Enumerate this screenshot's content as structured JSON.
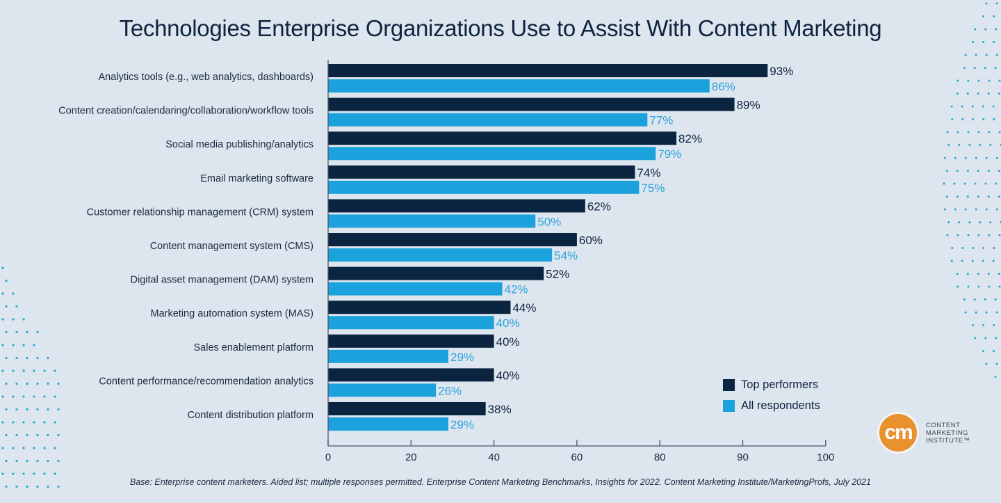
{
  "title": "Technologies Enterprise Organizations Use to Assist With Content Marketing",
  "footnote": "Base: Enterprise content marketers. Aided list; multiple responses permitted. Enterprise Content Marketing Benchmarks, Insights for 2022. Content Marketing Institute/MarketingProfs, July 2021",
  "logo": {
    "mark": "cm",
    "line1": "CONTENT",
    "line2": "MARKETING",
    "line3": "INSTITUTE™"
  },
  "colors": {
    "top_performers": "#0b2440",
    "all_respondents": "#1ba2dc",
    "background": "#dde5ee",
    "accent_orange": "#e8912d",
    "dots": "#2aa6cf"
  },
  "chart_data": {
    "type": "bar",
    "orientation": "horizontal",
    "title": "Technologies Enterprise Organizations Use to Assist With Content Marketing",
    "xlabel": "",
    "ylabel": "",
    "xlim": [
      0,
      100
    ],
    "x_ticks": [
      0,
      20,
      40,
      60,
      80,
      90,
      100
    ],
    "grid": false,
    "legend_position": "bottom-right",
    "value_suffix": "%",
    "categories": [
      "Analytics tools (e.g., web analytics, dashboards)",
      "Content creation/calendaring/collaboration/workflow tools",
      "Social media publishing/analytics",
      "Email marketing software",
      "Customer relationship management (CRM) system",
      "Content management system (CMS)",
      "Digital asset management (DAM) system",
      "Marketing automation system (MAS)",
      "Sales enablement platform",
      "Content performance/recommendation analytics",
      "Content distribution platform"
    ],
    "series": [
      {
        "name": "Top performers",
        "color": "#0b2440",
        "values": [
          93,
          89,
          82,
          74,
          62,
          60,
          52,
          44,
          40,
          40,
          38
        ]
      },
      {
        "name": "All respondents",
        "color": "#1ba2dc",
        "values": [
          86,
          77,
          79,
          75,
          50,
          54,
          42,
          40,
          29,
          26,
          29
        ]
      }
    ]
  }
}
